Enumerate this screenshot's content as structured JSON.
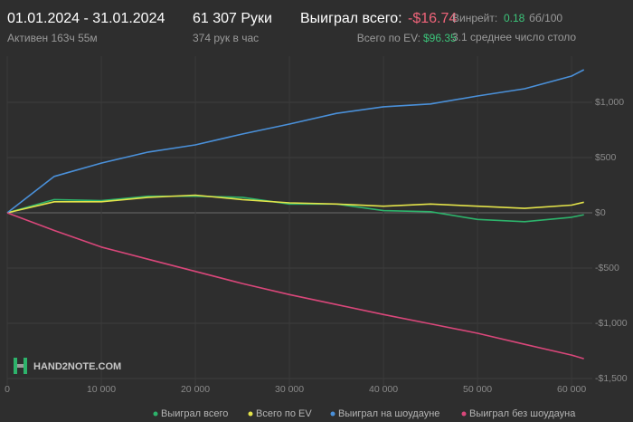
{
  "header": {
    "date_range": "01.01.2024 - 31.01.2024",
    "active": "Активен 163ч 55м",
    "hands": "61 307 Руки",
    "hands_per_hour": "374 рук в час",
    "won_label": "Выиграл всего:",
    "won_value": "-$16.74",
    "ev_label": "Всего по EV:",
    "ev_value": "$96.35",
    "winrate_label": "Винрейт:",
    "winrate_value": "0.18",
    "winrate_unit": "бб/100",
    "tables": "3.1 среднее число столо"
  },
  "watermark": "HAND2NOTE.COM",
  "chart_data": {
    "type": "line",
    "x": [
      0,
      5000,
      10000,
      15000,
      20000,
      25000,
      30000,
      35000,
      40000,
      45000,
      50000,
      55000,
      60000,
      61307
    ],
    "series": [
      {
        "name": "Выиграл всего",
        "color": "#2db36b",
        "values": [
          0,
          120,
          110,
          150,
          150,
          140,
          80,
          80,
          20,
          10,
          -60,
          -80,
          -40,
          -16.74
        ]
      },
      {
        "name": "Всего по EV",
        "color": "#e3e34a",
        "values": [
          0,
          100,
          100,
          140,
          160,
          120,
          90,
          80,
          60,
          80,
          60,
          40,
          70,
          96.35
        ]
      },
      {
        "name": "Выиграл на шоудауне",
        "color": "#4a90d9",
        "values": [
          0,
          330,
          450,
          550,
          615,
          713,
          803,
          900,
          960,
          985,
          1057,
          1123,
          1238,
          1295
        ]
      },
      {
        "name": "Выиграл без шоудауна",
        "color": "#d9477a",
        "values": [
          0,
          -160,
          -310,
          -420,
          -530,
          -640,
          -740,
          -830,
          -920,
          -1005,
          -1090,
          -1190,
          -1287,
          -1320
        ]
      }
    ],
    "xlim": [
      0,
      62200
    ],
    "ylim": [
      -1557,
      1418
    ],
    "xticks": [
      0,
      {
        "value": 10000,
        "label": "10 000"
      },
      {
        "value": 20000,
        "label": "20 000"
      },
      {
        "value": 30000,
        "label": "30 000"
      },
      {
        "value": 40000,
        "label": "40 000"
      },
      {
        "value": 50000,
        "label": "50 000"
      },
      {
        "value": 60000,
        "label": "60 000"
      }
    ],
    "yticks": [
      {
        "value": 1000,
        "label": "$1,000"
      },
      {
        "value": 500,
        "label": "$500"
      },
      {
        "value": 0,
        "label": "$0"
      },
      {
        "value": -500,
        "label": "-$500"
      },
      {
        "value": -1000,
        "label": "-$1,000"
      },
      {
        "value": -1500,
        "label": "-$1,500"
      }
    ],
    "grid": true
  }
}
